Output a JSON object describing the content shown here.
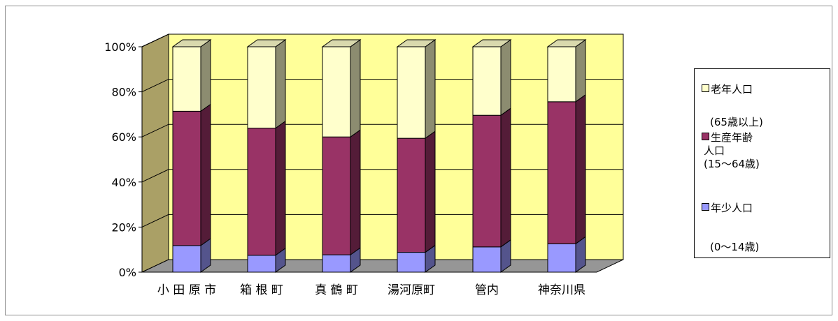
{
  "chart_data": {
    "type": "bar",
    "stacked": true,
    "percent": true,
    "three_d": true,
    "categories": [
      "小 田 原 市",
      "箱 根 町",
      "真 鶴 町",
      "湯河原町",
      "管内",
      "神奈川県"
    ],
    "series": [
      {
        "name": "年少人口（0〜14歳）",
        "color": "#9999ff",
        "values": [
          11.8,
          7.5,
          7.7,
          8.8,
          11.2,
          12.6
        ]
      },
      {
        "name": "生産年齢人口（15〜64歳）",
        "color": "#993366",
        "values": [
          59.6,
          56.4,
          52.3,
          50.6,
          58.4,
          63.0
        ]
      },
      {
        "name": "老年人口（65歳以上）",
        "color": "#ffffcc",
        "values": [
          28.6,
          36.1,
          40.0,
          40.6,
          30.4,
          24.4
        ]
      }
    ],
    "y_ticks": [
      "0%",
      "20%",
      "40%",
      "60%",
      "80%",
      "100%"
    ],
    "ylim": [
      0,
      100
    ],
    "wall_color": "#ffff99",
    "side_wall_color": "#aaa066",
    "floor_color": "#969696",
    "grid": true,
    "legend_position": "right"
  },
  "legend": {
    "elderly": {
      "line1": "老年人口",
      "line2": "(65歳以上)"
    },
    "working": {
      "line1": "生産年齢",
      "line2": "人口",
      "line3": "(15〜64歳)"
    },
    "young": {
      "line1": "年少人口",
      "line2": "(0〜14歳)"
    }
  }
}
